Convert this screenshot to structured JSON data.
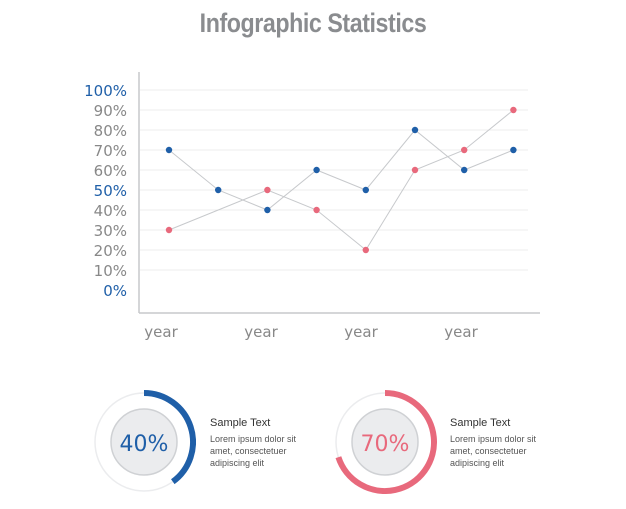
{
  "title": "Infographic Statistics",
  "chart_data": {
    "type": "line",
    "categories": [
      "year",
      "",
      "year",
      "",
      "year",
      "",
      "year",
      ""
    ],
    "x_tick_labels": [
      "year",
      "year",
      "year",
      "year"
    ],
    "y_tick_labels": [
      "0%",
      "10%",
      "20%",
      "30%",
      "40%",
      "50%",
      "60%",
      "70%",
      "80%",
      "90%",
      "100%"
    ],
    "ylim": [
      0,
      100
    ],
    "grid": true,
    "series": [
      {
        "values": [
          70,
          50,
          40,
          60,
          50,
          80,
          60,
          70
        ],
        "color": "#1f5fa8"
      },
      {
        "values": [
          30,
          null,
          50,
          40,
          20,
          60,
          70,
          90
        ],
        "color": "#e8697c"
      }
    ],
    "colors": {
      "axis": "#c7c9cc",
      "grid": "#ececec",
      "tick_text": "#888888",
      "tick_accent": "#1f5fa8",
      "line": "#c7c9cc"
    }
  },
  "stats": [
    {
      "value": 40,
      "label": "40%",
      "heading": "Sample Text",
      "body": "Lorem ipsum dolor sit amet, consectetuer adipiscing elit",
      "color": "#1f5fa8"
    },
    {
      "value": 70,
      "label": "70%",
      "heading": "Sample Text",
      "body": "Lorem ipsum dolor sit amet, consectetuer adipiscing elit",
      "color": "#e8697c"
    }
  ]
}
